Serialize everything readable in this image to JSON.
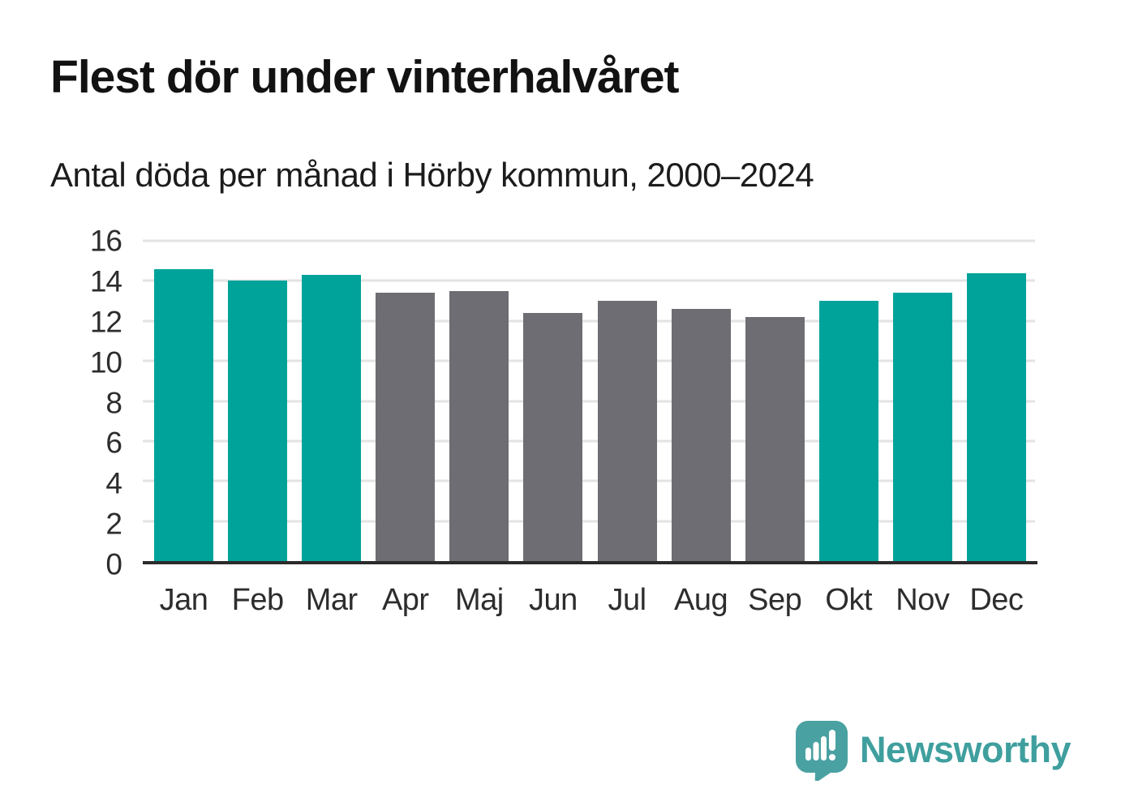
{
  "header": {
    "title": "Flest dör under vinterhalvåret",
    "subtitle": "Antal döda per månad i Hörby kommun, 2000–2024"
  },
  "chart_data": {
    "type": "bar",
    "title": "Flest dör under vinterhalvåret",
    "subtitle": "Antal döda per månad i Hörby kommun, 2000–2024",
    "categories": [
      "Jan",
      "Feb",
      "Mar",
      "Apr",
      "Maj",
      "Jun",
      "Jul",
      "Aug",
      "Sep",
      "Okt",
      "Nov",
      "Dec"
    ],
    "values": [
      14.6,
      14.0,
      14.3,
      13.4,
      13.5,
      12.4,
      13.0,
      12.6,
      12.2,
      13.0,
      13.4,
      14.4
    ],
    "bar_color_keys": [
      "winter",
      "winter",
      "winter",
      "summer",
      "summer",
      "summer",
      "summer",
      "summer",
      "summer",
      "winter",
      "winter",
      "winter"
    ],
    "colors": {
      "winter": "#00a39a",
      "summer": "#6e6d73"
    },
    "xlabel": "",
    "ylabel": "",
    "ylim": [
      0,
      16
    ],
    "yticks": [
      0,
      2,
      4,
      6,
      8,
      10,
      12,
      14,
      16
    ],
    "grid": true,
    "gridline_color": "#e3e3e3",
    "axis_line_color": "#2b2b2b",
    "legend": false
  },
  "branding": {
    "logo_text": "Newsworthy",
    "logo_icon": "bar-chart-speech-bubble-icon",
    "logo_color": "#4aa1a1",
    "logo_text_color": "#3f9f9e"
  }
}
